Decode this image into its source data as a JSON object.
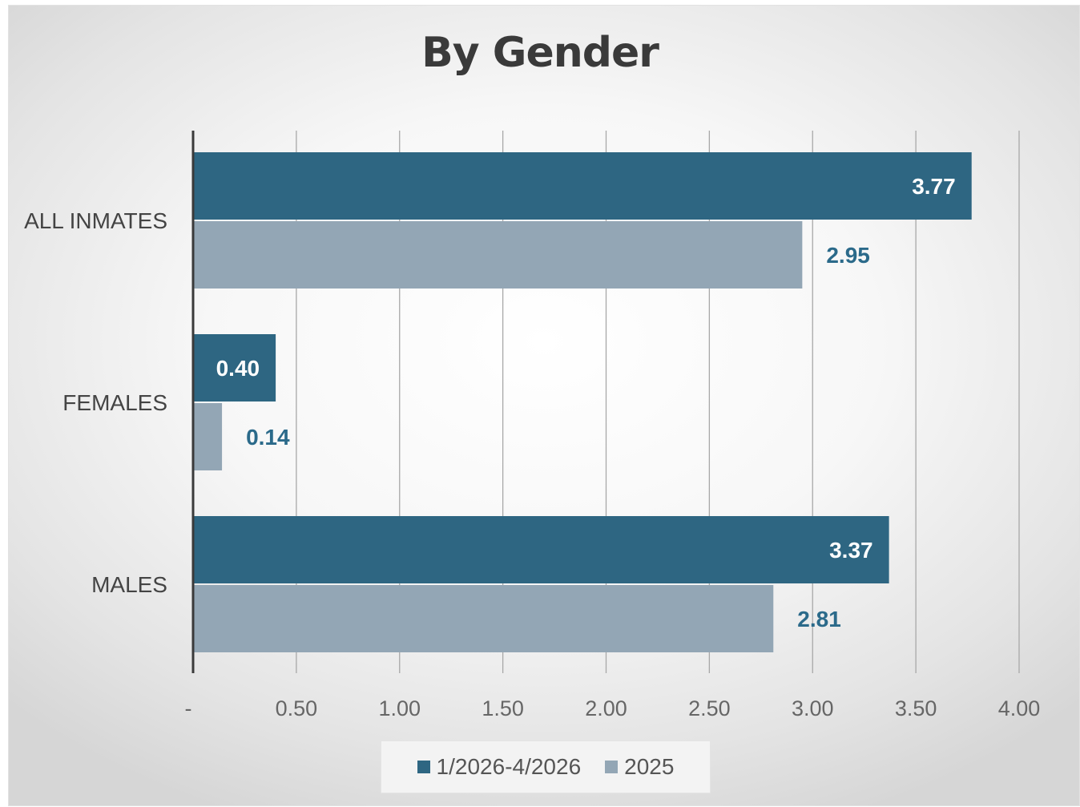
{
  "chart_data": {
    "type": "bar",
    "orientation": "horizontal",
    "title": "By Gender",
    "categories": [
      "ALL INMATES",
      "FEMALES",
      "MALES"
    ],
    "series": [
      {
        "name": "1/2026-4/2026",
        "color": "#2e6682",
        "values": [
          3.77,
          0.4,
          3.37
        ],
        "labels": [
          "3.77",
          "0.40",
          "3.37"
        ],
        "label_position": "inside-end",
        "label_color": "#ffffff"
      },
      {
        "name": "2025",
        "color": "#93a6b5",
        "values": [
          2.95,
          0.14,
          2.81
        ],
        "labels": [
          "2.95",
          "0.14",
          "2.81"
        ],
        "label_position": "outside-end",
        "label_color": "#2b6a8a"
      }
    ],
    "xlim": [
      0,
      4
    ],
    "ticks": [
      0,
      0.5,
      1.0,
      1.5,
      2.0,
      2.5,
      3.0,
      3.5,
      4.0
    ],
    "tick_labels": [
      "-",
      "0.50",
      "1.00",
      "1.50",
      "2.00",
      "2.50",
      "3.00",
      "3.50",
      "4.00"
    ],
    "grid": "vertical",
    "legend": "bottom"
  }
}
